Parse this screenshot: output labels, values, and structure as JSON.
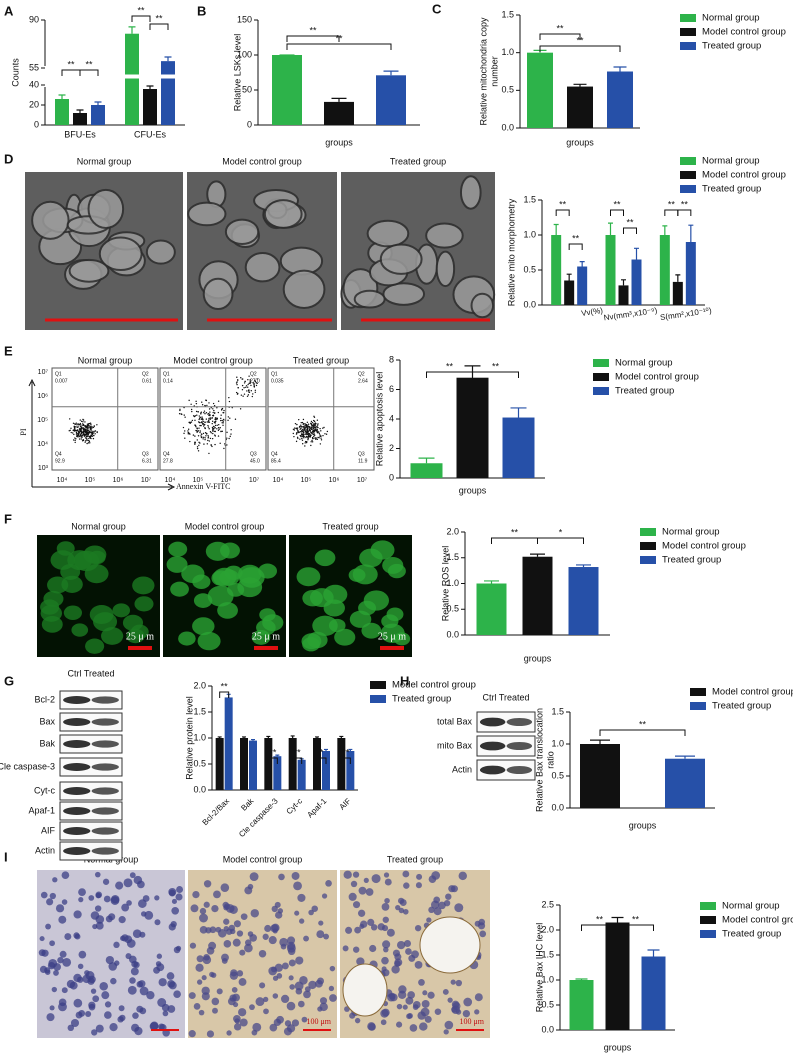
{
  "labels": [
    "A",
    "B",
    "C",
    "D",
    "E",
    "F",
    "G",
    "H",
    "I"
  ],
  "tem": {
    "titles": [
      "Normal group",
      "Model control group",
      "Treated group"
    ]
  },
  "flow": {
    "titles": [
      "Normal group",
      "Model control group",
      "Treated group"
    ],
    "quadrants": [
      [
        [
          "Q1",
          "0.007"
        ],
        [
          "Q2",
          "0.61"
        ],
        [
          "Q4",
          "92.9"
        ],
        [
          "Q3",
          "6.31"
        ]
      ],
      [
        [
          "Q1",
          "0.14"
        ],
        [
          "Q2",
          "27.0"
        ],
        [
          "Q4",
          "27.8"
        ],
        [
          "Q3",
          "45.0"
        ]
      ],
      [
        [
          "Q1",
          "0.035"
        ],
        [
          "Q2",
          "2.64"
        ],
        [
          "Q4",
          "85.4"
        ],
        [
          "Q3",
          "11.9"
        ]
      ]
    ],
    "x_label": "Annexin V-FITC",
    "y_label": "PI",
    "x_ticks": [
      "10⁴",
      "10⁵",
      "10⁶",
      "10⁷"
    ],
    "y_ticks": [
      "10⁷",
      "10⁶",
      "10⁵",
      "10⁴",
      "10³"
    ]
  },
  "ros": {
    "titles": [
      "Normal group",
      "Model control group",
      "Treated group"
    ],
    "scale_labels": [
      "25 μ m",
      "25 μ m",
      "25 μ m"
    ]
  },
  "ihc": {
    "titles": [
      "Normal group",
      "Model control group",
      "Treated group"
    ],
    "scale_labels": [
      "100 μm",
      "100 μm"
    ]
  },
  "blot_g": {
    "columns": "Ctrl Treated",
    "rows": [
      "Bcl-2",
      "Bax",
      "Bak",
      "Cle caspase-3",
      "Cyt-c",
      "Apaf-1",
      "AIF",
      "Actin"
    ]
  },
  "blot_h": {
    "columns": "Ctrl Treated",
    "rows": [
      "total Bax",
      "mito Bax",
      "Actin"
    ]
  },
  "chart_data": [
    {
      "type": "bar",
      "ylabel": "Counts",
      "categories": [
        "BFU-Es",
        "CFU-Es"
      ],
      "ylim": [
        0,
        90
      ],
      "ybreak": [
        40,
        55
      ],
      "yticks": [
        0,
        20,
        40,
        55,
        90
      ],
      "series": [
        {
          "color": "#2db34a",
          "values": [
            26,
            80
          ],
          "errors": [
            4,
            5
          ]
        },
        {
          "color": "#111111",
          "values": [
            12,
            36
          ],
          "errors": [
            3,
            3
          ]
        },
        {
          "color": "#2650a8",
          "values": [
            20,
            60
          ],
          "errors": [
            3,
            3
          ]
        }
      ],
      "annotations": [
        "**",
        "**",
        "**",
        "**"
      ]
    },
    {
      "type": "bar",
      "ylabel": "Relative LSKs level",
      "xlabel": "groups",
      "ylim": [
        0,
        150
      ],
      "yticks": [
        0,
        50,
        100,
        150
      ],
      "series": [
        {
          "color": "#2db34a",
          "values": [
            100
          ],
          "errors": [
            0
          ]
        },
        {
          "color": "#111111",
          "values": [
            33
          ],
          "errors": [
            5
          ]
        },
        {
          "color": "#2650a8",
          "values": [
            71
          ],
          "errors": [
            6
          ]
        }
      ],
      "annotations": [
        "**",
        "**"
      ]
    },
    {
      "type": "bar",
      "ylabel": [
        "Relative mitochondria copy",
        "number"
      ],
      "xlabel": "groups",
      "ylim": [
        0,
        1.5
      ],
      "yticks": [
        {
          "value": 0,
          "label": "0.0"
        },
        0.5,
        {
          "value": 1,
          "label": "1.0"
        },
        1.5
      ],
      "legend": true,
      "series": [
        {
          "name": "Normal group",
          "color": "#2db34a",
          "values": [
            1.0
          ],
          "errors": [
            0.03
          ]
        },
        {
          "name": "Model control group",
          "color": "#111111",
          "values": [
            0.55
          ],
          "errors": [
            0.03
          ]
        },
        {
          "name": "Treated group",
          "color": "#2650a8",
          "values": [
            0.75
          ],
          "errors": [
            0.06
          ]
        }
      ],
      "annotations": [
        "**",
        "**"
      ]
    },
    {
      "type": "bar",
      "ylabel": "Relative mito morphometry",
      "categories": [
        "Vv(%)",
        "Nv(mm³,x10⁻⁹)",
        "S(mm²,x10⁻¹⁰)"
      ],
      "ylim": [
        0,
        1.5
      ],
      "yticks": [
        {
          "value": 0,
          "label": "0.0"
        },
        0.5,
        {
          "value": 1,
          "label": "1.0"
        },
        1.5
      ],
      "legend": true,
      "series": [
        {
          "name": "Normal group",
          "color": "#2db34a",
          "values": [
            1.0,
            1.0,
            1.0
          ],
          "errors": [
            0.15,
            0.17,
            0.13
          ]
        },
        {
          "name": "Model control group",
          "color": "#111111",
          "values": [
            0.35,
            0.28,
            0.33
          ],
          "errors": [
            0.09,
            0.08,
            0.1
          ]
        },
        {
          "name": "Treated group",
          "color": "#2650a8",
          "values": [
            0.55,
            0.65,
            0.9
          ],
          "errors": [
            0.07,
            0.16,
            0.24
          ]
        }
      ],
      "annotations": [
        "**",
        "**",
        "**",
        "**",
        "**",
        "**"
      ]
    },
    {
      "type": "bar",
      "ylabel": "Relative apoptosis level",
      "xlabel": "groups",
      "ylim": [
        0,
        8
      ],
      "yticks": [
        0,
        2,
        4,
        6,
        8
      ],
      "legend": true,
      "series": [
        {
          "name": "Normal group",
          "color": "#2db34a",
          "values": [
            1.0
          ],
          "errors": [
            0.35
          ]
        },
        {
          "name": "Model control group",
          "color": "#111111",
          "values": [
            6.8
          ],
          "errors": [
            0.8
          ]
        },
        {
          "name": "Treated group",
          "color": "#2650a8",
          "values": [
            4.1
          ],
          "errors": [
            0.65
          ]
        }
      ],
      "annotations": [
        "**",
        "**"
      ]
    },
    {
      "type": "bar",
      "ylabel": "Relative ROS level",
      "xlabel": "groups",
      "ylim": [
        0,
        2
      ],
      "yticks": [
        {
          "value": 0,
          "label": "0.0"
        },
        0.5,
        {
          "value": 1,
          "label": "1.0"
        },
        1.5,
        {
          "value": 2,
          "label": "2.0"
        }
      ],
      "legend": true,
      "series": [
        {
          "name": "Normal group",
          "color": "#2db34a",
          "values": [
            1.0
          ],
          "errors": [
            0.05
          ]
        },
        {
          "name": "Model control group",
          "color": "#111111",
          "values": [
            1.52
          ],
          "errors": [
            0.05
          ]
        },
        {
          "name": "Treated group",
          "color": "#2650a8",
          "values": [
            1.32
          ],
          "errors": [
            0.04
          ]
        }
      ],
      "annotations": [
        "**",
        "*"
      ]
    },
    {
      "type": "bar",
      "ylabel": "Relative protein level",
      "categories": [
        "Bcl-2/Bax",
        "Bak",
        "Cle caspase-3",
        "Cyt-c",
        "Apaf-1",
        "AIF"
      ],
      "ylim": [
        0,
        2
      ],
      "yticks": [
        {
          "value": 0,
          "label": "0.0"
        },
        0.5,
        {
          "value": 1,
          "label": "1.0"
        },
        1.5,
        {
          "value": 2,
          "label": "2.0"
        }
      ],
      "legend": true,
      "series": [
        {
          "name": "Model control group",
          "color": "#111111",
          "values": [
            1,
            1,
            1,
            1,
            1,
            1
          ],
          "errors": [
            0.02,
            0.02,
            0.03,
            0.04,
            0.02,
            0.03
          ]
        },
        {
          "name": "Treated group",
          "color": "#2650a8",
          "values": [
            1.78,
            0.95,
            0.65,
            0.58,
            0.75,
            0.75
          ],
          "errors": [
            0.06,
            0.02,
            0.02,
            0.02,
            0.03,
            0.03
          ]
        }
      ],
      "annotations": [
        "**",
        "**",
        "**",
        "*",
        "**"
      ]
    },
    {
      "type": "bar",
      "ylabel": [
        "Relative Bax translocation",
        "ratio"
      ],
      "xlabel": "groups",
      "ylim": [
        0,
        1.5
      ],
      "yticks": [
        {
          "value": 0,
          "label": "0.0"
        },
        0.5,
        {
          "value": 1,
          "label": "1.0"
        },
        1.5
      ],
      "legend": true,
      "series": [
        {
          "name": "Model control group",
          "color": "#111111",
          "values": [
            1.0
          ],
          "errors": [
            0.06
          ]
        },
        {
          "name": "Treated group",
          "color": "#2650a8",
          "values": [
            0.77
          ],
          "errors": [
            0.04
          ]
        }
      ],
      "annotations": [
        "**"
      ]
    },
    {
      "type": "bar",
      "ylabel": "Relative Bax IHC level",
      "xlabel": "groups",
      "ylim": [
        0,
        2.5
      ],
      "yticks": [
        {
          "value": 0,
          "label": "0.0"
        },
        0.5,
        {
          "value": 1,
          "label": "1.0"
        },
        1.5,
        {
          "value": 2,
          "label": "2.0"
        },
        2.5
      ],
      "legend": true,
      "series": [
        {
          "name": "Normal group",
          "color": "#2db34a",
          "values": [
            1.0
          ],
          "errors": [
            0.02
          ]
        },
        {
          "name": "Model control group",
          "color": "#111111",
          "values": [
            2.15
          ],
          "errors": [
            0.1
          ]
        },
        {
          "name": "Treated group",
          "color": "#2650a8",
          "values": [
            1.47
          ],
          "errors": [
            0.13
          ]
        }
      ],
      "annotations": [
        "**",
        "**"
      ]
    }
  ]
}
